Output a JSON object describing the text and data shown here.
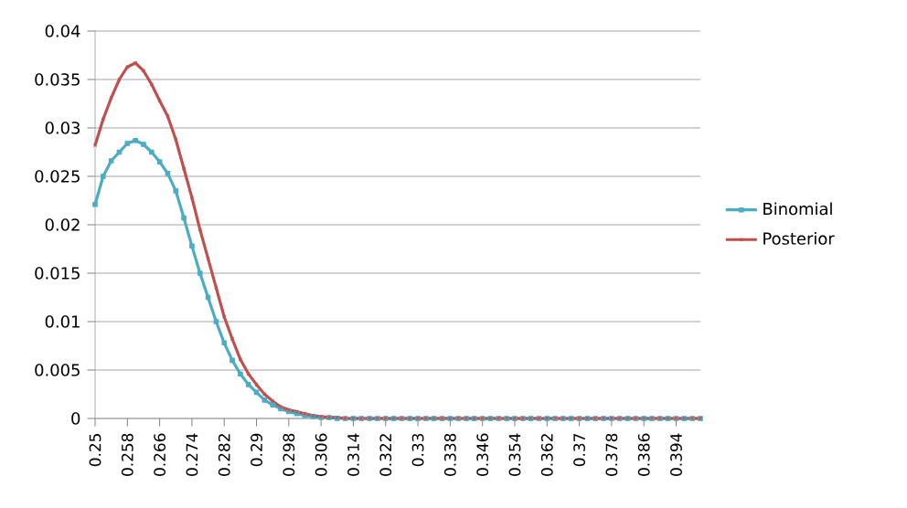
{
  "chart_data": {
    "type": "line",
    "x": [
      0.25,
      0.252,
      0.254,
      0.256,
      0.258,
      0.26,
      0.262,
      0.264,
      0.266,
      0.268,
      0.27,
      0.272,
      0.274,
      0.276,
      0.278,
      0.28,
      0.282,
      0.284,
      0.286,
      0.288,
      0.29,
      0.292,
      0.294,
      0.296,
      0.298,
      0.3,
      0.302,
      0.304,
      0.306,
      0.308,
      0.31,
      0.312,
      0.314,
      0.316,
      0.318,
      0.32,
      0.322,
      0.324,
      0.326,
      0.328,
      0.33,
      0.332,
      0.334,
      0.336,
      0.338,
      0.34,
      0.342,
      0.344,
      0.346,
      0.348,
      0.35,
      0.352,
      0.354,
      0.356,
      0.358,
      0.36,
      0.362,
      0.364,
      0.366,
      0.368,
      0.37,
      0.372,
      0.374,
      0.376,
      0.378,
      0.38,
      0.382,
      0.384,
      0.386,
      0.388,
      0.39,
      0.392,
      0.394,
      0.396,
      0.398,
      0.4
    ],
    "series": [
      {
        "name": "Binomial",
        "color": "#4bacc6",
        "marker": "square",
        "values": [
          0.0221,
          0.025,
          0.0266,
          0.0275,
          0.0284,
          0.0287,
          0.0283,
          0.0275,
          0.0265,
          0.0253,
          0.0235,
          0.0207,
          0.0178,
          0.015,
          0.0125,
          0.01,
          0.0078,
          0.006,
          0.0046,
          0.0035,
          0.0027,
          0.0019,
          0.0014,
          0.001,
          0.0007,
          0.0005,
          0.0003,
          0.0002,
          0.0001,
          0.0001,
          0,
          0,
          0,
          0,
          0,
          0,
          0,
          0,
          0,
          0,
          0,
          0,
          0,
          0,
          0,
          0,
          0,
          0,
          0,
          0,
          0,
          0,
          0,
          0,
          0,
          0,
          0,
          0,
          0,
          0,
          0,
          0,
          0,
          0,
          0,
          0,
          0,
          0,
          0,
          0,
          0,
          0,
          0,
          0,
          0,
          0
        ]
      },
      {
        "name": "Posterior",
        "color": "#c0504d",
        "marker": "cross",
        "values": [
          0.0282,
          0.0309,
          0.0331,
          0.035,
          0.0363,
          0.0367,
          0.0359,
          0.0345,
          0.0328,
          0.0312,
          0.0288,
          0.0258,
          0.0228,
          0.0195,
          0.0165,
          0.0135,
          0.0105,
          0.0082,
          0.0061,
          0.0046,
          0.0035,
          0.0025,
          0.0018,
          0.0012,
          0.0009,
          0.0007,
          0.0005,
          0.0003,
          0.0002,
          0.0001,
          0.0001,
          0,
          0,
          0,
          0,
          0,
          0,
          0,
          0,
          0,
          0,
          0,
          0,
          0,
          0,
          0,
          0,
          0,
          0,
          0,
          0,
          0,
          0,
          0,
          0,
          0,
          0,
          0,
          0,
          0,
          0,
          0,
          0,
          0,
          0,
          0,
          0,
          0,
          0,
          0,
          0,
          0,
          0,
          0,
          0,
          0
        ]
      }
    ],
    "xlim": [
      0.25,
      0.4
    ],
    "xticks": [
      0.25,
      0.258,
      0.266,
      0.274,
      0.282,
      0.29,
      0.298,
      0.306,
      0.314,
      0.322,
      0.33,
      0.338,
      0.346,
      0.354,
      0.362,
      0.37,
      0.378,
      0.386,
      0.394
    ],
    "ylim": [
      0,
      0.04
    ],
    "yticks": [
      0,
      0.005,
      0.01,
      0.015,
      0.02,
      0.025,
      0.03,
      0.035,
      0.04
    ],
    "grid": "y",
    "legend": "right"
  }
}
